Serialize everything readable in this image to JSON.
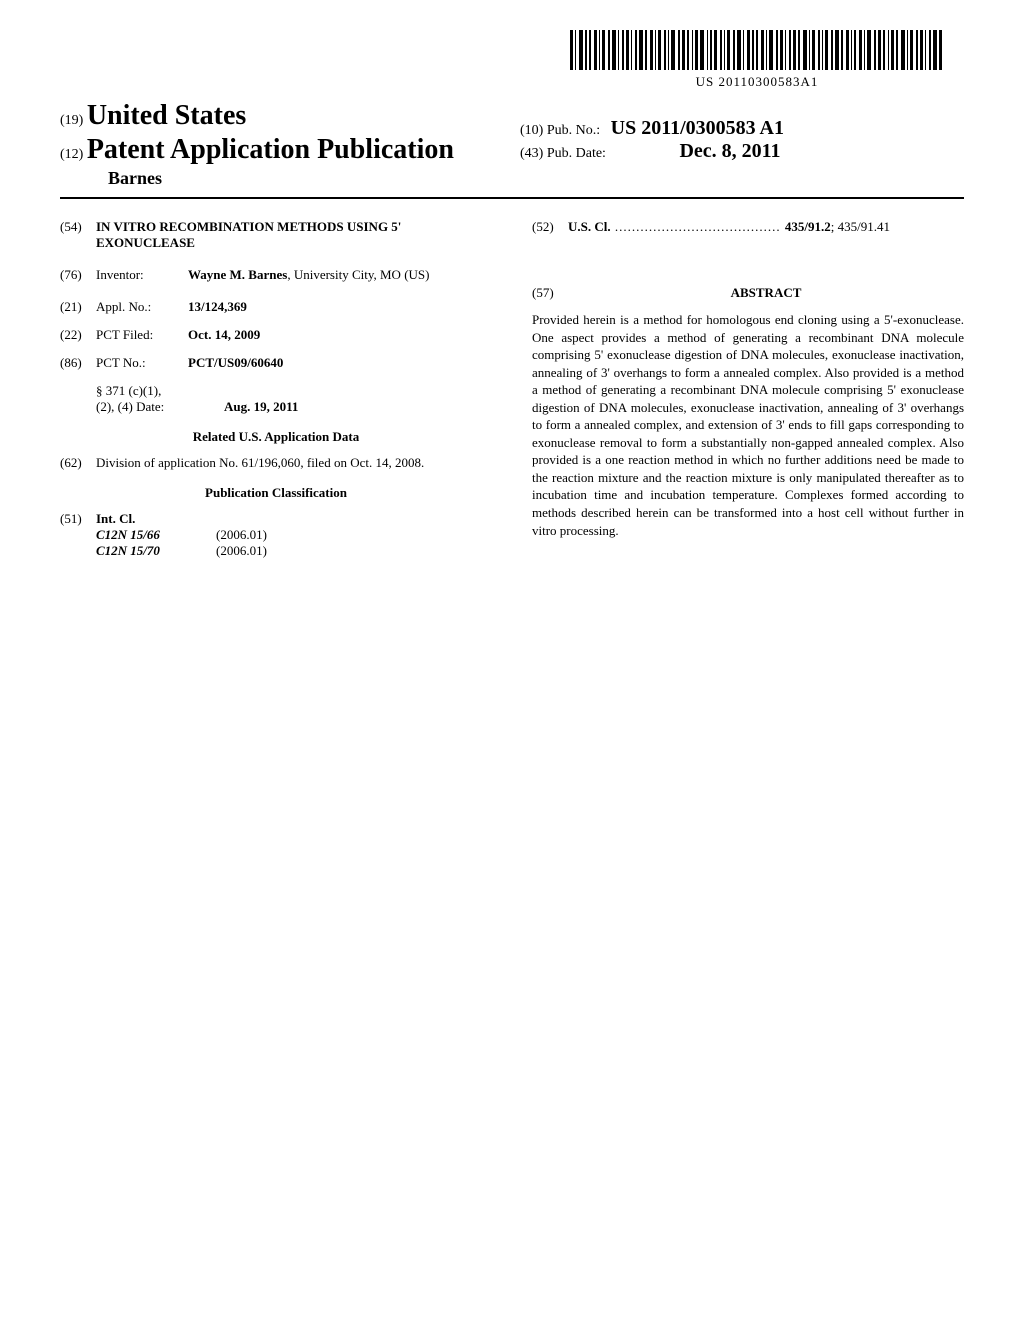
{
  "barcode": {
    "text": "US 20110300583A1",
    "widths": [
      3,
      1,
      4,
      2,
      2,
      3,
      1,
      3,
      2,
      4,
      1,
      2,
      3,
      1,
      2,
      4,
      2,
      3,
      1,
      3,
      2,
      1,
      4,
      2,
      3,
      2,
      1,
      3,
      4,
      1,
      2,
      3,
      2,
      1,
      3,
      2,
      4,
      1,
      3,
      2,
      2,
      3,
      1,
      4,
      2,
      3,
      1,
      2,
      3,
      2,
      4,
      1,
      3,
      2,
      1,
      3,
      2,
      4,
      2,
      3,
      1,
      2,
      3,
      1,
      4,
      2,
      3,
      2,
      1,
      3,
      2,
      4,
      1,
      3,
      2,
      3,
      1,
      2,
      4,
      3
    ],
    "gaps": [
      1,
      2,
      1,
      1,
      2,
      1,
      1,
      2,
      1,
      1,
      2,
      1,
      1,
      2,
      1,
      1,
      2,
      1,
      1,
      2,
      1,
      1,
      2,
      1,
      1,
      2,
      1,
      1,
      2,
      1,
      1,
      2,
      1,
      1,
      2,
      1,
      1,
      2,
      1,
      1,
      2,
      1,
      1,
      2,
      1,
      1,
      2,
      1,
      1,
      2,
      1,
      1,
      2,
      1,
      1,
      2,
      1,
      1,
      2,
      1,
      1,
      2,
      1,
      1,
      2,
      1,
      1,
      2,
      1,
      1,
      2,
      1,
      1,
      2,
      1,
      1,
      2,
      1,
      1,
      2
    ]
  },
  "header": {
    "num19": "(19)",
    "country": "United States",
    "num12": "(12)",
    "pubType": "Patent Application Publication",
    "inventorSurname": "Barnes",
    "num10": "(10)",
    "pubNoLabel": "Pub. No.:",
    "pubNo": "US 2011/0300583 A1",
    "num43": "(43)",
    "pubDateLabel": "Pub. Date:",
    "pubDate": "Dec. 8, 2011"
  },
  "left": {
    "title": {
      "num": "(54)",
      "value": "IN VITRO RECOMBINATION METHODS USING 5' EXONUCLEASE"
    },
    "inventor": {
      "num": "(76)",
      "label": "Inventor:",
      "name": "Wayne M. Barnes",
      "location": ", University City, MO (US)"
    },
    "applNo": {
      "num": "(21)",
      "label": "Appl. No.:",
      "value": "13/124,369"
    },
    "pctFiled": {
      "num": "(22)",
      "label": "PCT Filed:",
      "value": "Oct. 14, 2009"
    },
    "pctNo": {
      "num": "(86)",
      "label": "PCT No.:",
      "value": "PCT/US09/60640"
    },
    "section371": {
      "label1": "§ 371 (c)(1),",
      "label2": "(2), (4) Date:",
      "value": "Aug. 19, 2011"
    },
    "relatedHeading": "Related U.S. Application Data",
    "division": {
      "num": "(62)",
      "text": "Division of application No. 61/196,060, filed on Oct. 14, 2008."
    },
    "pubClassHeading": "Publication Classification",
    "intCl": {
      "num": "(51)",
      "label": "Int. Cl.",
      "rows": [
        {
          "code": "C12N 15/66",
          "year": "(2006.01)"
        },
        {
          "code": "C12N 15/70",
          "year": "(2006.01)"
        }
      ]
    }
  },
  "right": {
    "usCl": {
      "num": "(52)",
      "label": "U.S. Cl.",
      "dots": " ....................................... ",
      "value1": "435/91.2",
      "value2": "; 435/91.41"
    },
    "abstractNum": "(57)",
    "abstractHeading": "ABSTRACT",
    "abstractText": "Provided herein is a method for homologous end cloning using a 5'-exonuclease. One aspect provides a method of generating a recombinant DNA molecule comprising 5' exonuclease digestion of DNA molecules, exonuclease inactivation, annealing of 3' overhangs to form a annealed complex. Also provided is a method a method of generating a recombinant DNA molecule comprising 5' exonuclease digestion of DNA molecules, exonuclease inactivation, annealing of 3' overhangs to form a annealed complex, and extension of 3' ends to fill gaps corresponding to exonuclease removal to form a substantially non-gapped annealed complex. Also provided is a one reaction method in which no further additions need be made to the reaction mixture and the reaction mixture is only manipulated thereafter as to incubation time and incubation temperature. Complexes formed according to methods described herein can be transformed into a host cell without further in vitro processing."
  }
}
